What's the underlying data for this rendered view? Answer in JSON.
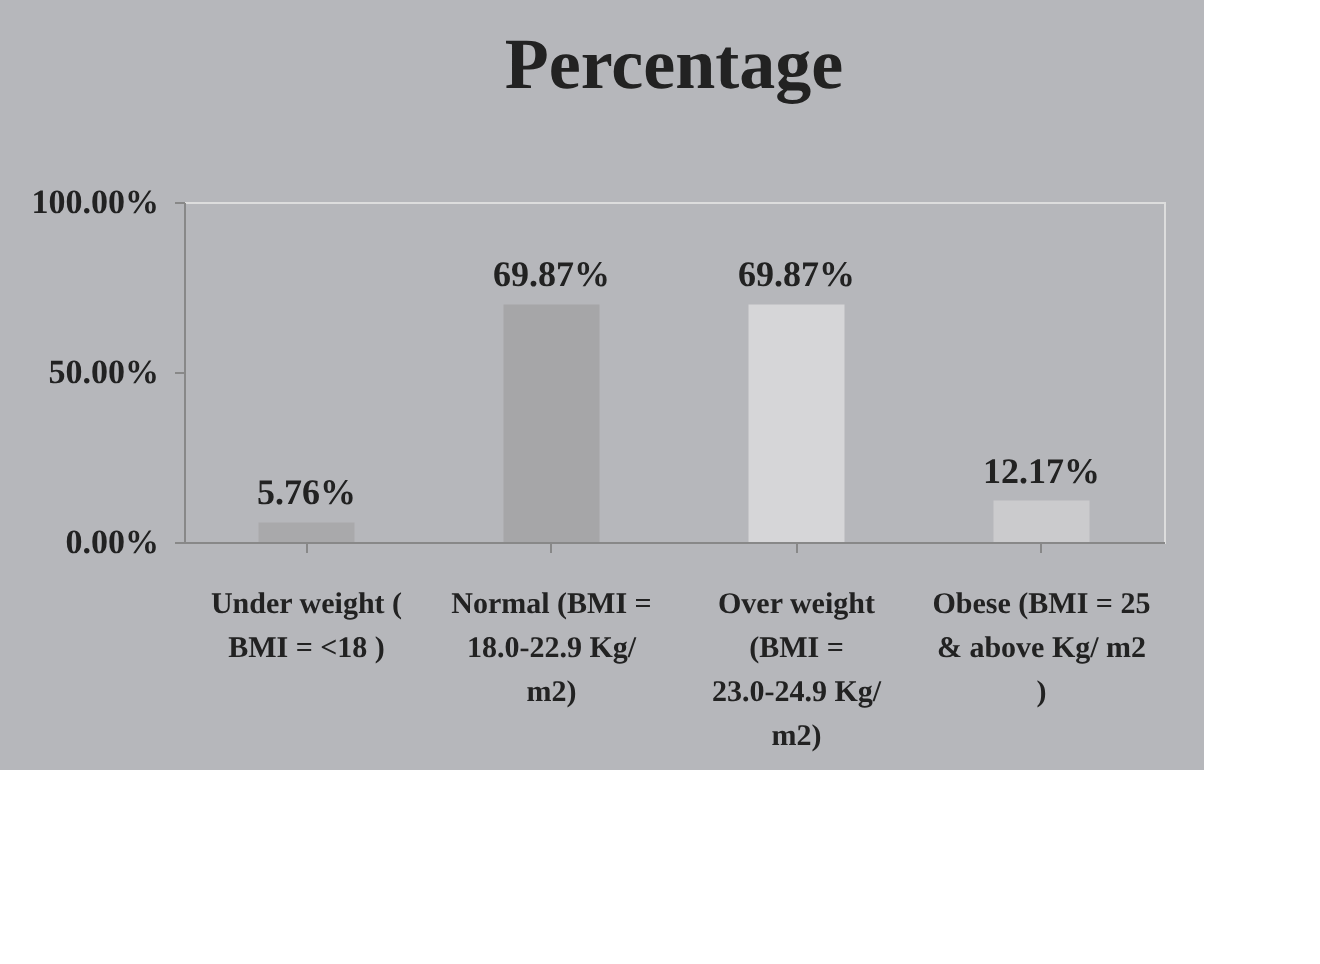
{
  "chart_data": {
    "type": "bar",
    "title": "Percentage",
    "categories": [
      "Under weight ( BMI = <18 )",
      "Normal (BMI = 18.0-22.9 Kg/ m2)",
      "Over weight (BMI = 23.0-24.9 Kg/ m2)",
      "Obese (BMI = 25 & above Kg/ m2 )"
    ],
    "values": [
      5.76,
      69.87,
      69.87,
      12.17
    ],
    "colors": [
      "#a9a9ab",
      "#a6a6a8",
      "#d6d6d8",
      "#cbcbcd"
    ],
    "value_labels": [
      "5.76%",
      "69.87%",
      "69.87%",
      "12.17%"
    ],
    "ylim": [
      0,
      100
    ],
    "yticks": [
      {
        "value": 0,
        "label": "0.00%"
      },
      {
        "value": 50,
        "label": "50.00%"
      },
      {
        "value": 100,
        "label": "100.00%"
      }
    ],
    "grid": false
  }
}
